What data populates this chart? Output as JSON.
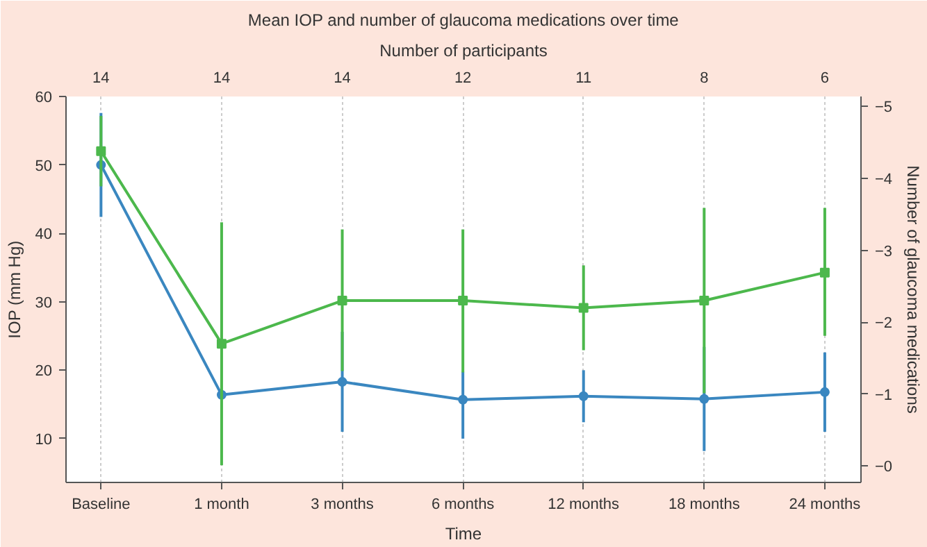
{
  "chart_data": {
    "type": "line",
    "title": "Mean IOP and number of glaucoma medications over time",
    "xlabel": "Time",
    "ylabel": "IOP (mm Hg)",
    "y2label": "Number of glaucoma medications",
    "x2label": "Number of participants",
    "categories": [
      "Baseline",
      "1 month",
      "3 months",
      "6 months",
      "12 months",
      "18 months",
      "24 months"
    ],
    "annotations": [
      "14",
      "14",
      "14",
      "12",
      "11",
      "8",
      "6"
    ],
    "ylim": [
      3.6,
      60
    ],
    "yticks": [
      10,
      20,
      30,
      40,
      50,
      60
    ],
    "y2lim": [
      0.23,
      -5.14
    ],
    "y2ticks": [
      {
        "value": 0,
        "label": "−0"
      },
      {
        "value": -1,
        "label": "−1"
      },
      {
        "value": -2,
        "label": "−2"
      },
      {
        "value": -3,
        "label": "−3"
      },
      {
        "value": -4,
        "label": "−4"
      },
      {
        "value": -5,
        "label": "−5"
      }
    ],
    "grid": "x",
    "series": [
      {
        "color": "#3a87c0",
        "marker": "circle",
        "values": [
          50,
          16.4,
          18.3,
          15.7,
          16.2,
          15.8,
          16.8
        ],
        "errors": [
          7.6,
          null,
          7.3,
          [
            10.0,
            19.8
          ],
          [
            12.4,
            20.0
          ],
          7.6,
          [
            11.0,
            22.6
          ]
        ]
      },
      {
        "color": "#4cb84c",
        "marker": "square",
        "axis": "y2",
        "values": [
          -4.38,
          -1.7,
          -2.3,
          -2.3,
          -2.2,
          -2.3,
          -2.69
        ],
        "errors": [
          0.49,
          [
            -3.39,
            -0.01
          ],
          [
            -3.29,
            -1.32
          ],
          [
            -3.29,
            -1.3
          ],
          [
            -2.79,
            -1.61
          ],
          [
            -3.59,
            -1.01
          ],
          [
            -3.59,
            -1.81
          ]
        ]
      }
    ]
  }
}
